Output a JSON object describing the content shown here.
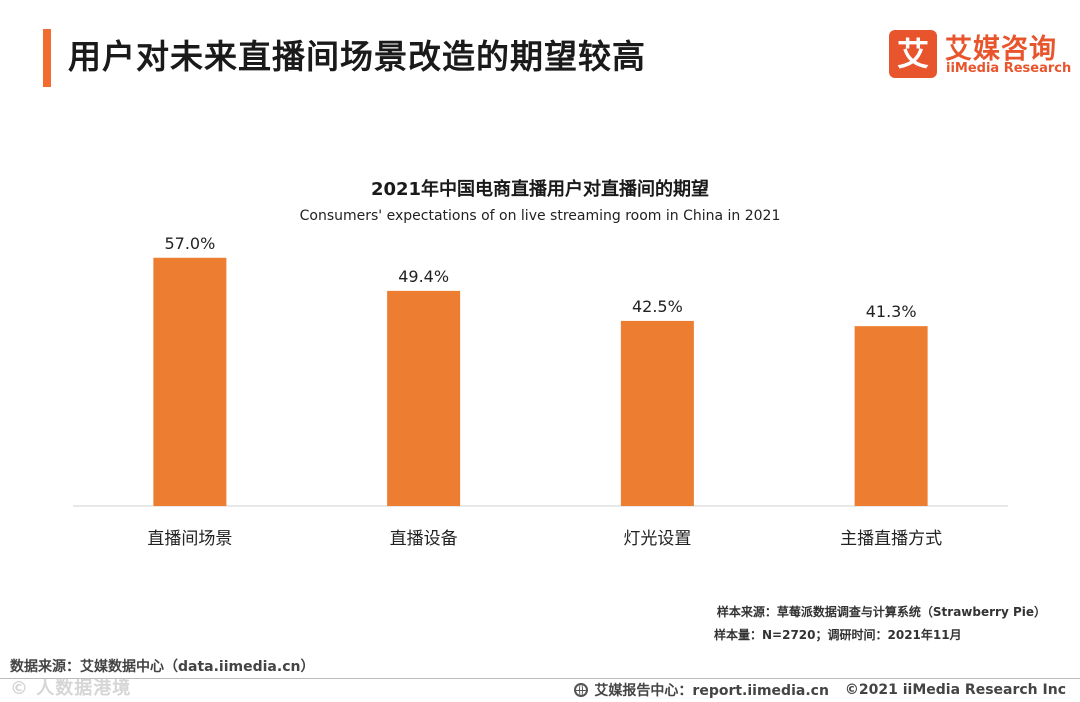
{
  "header": {
    "title": "用户对未来直播间场景改造的期望较高",
    "accent_color": "#F26B2F"
  },
  "logo": {
    "mark": "艾",
    "name_cn": "艾媒咨询",
    "name_en": "iiMedia Research",
    "color": "#E8552D"
  },
  "chart_data": {
    "type": "bar",
    "title": "2021年中国电商直播用户对直播间的期望",
    "subtitle": "Consumers' expectations of on live streaming room in China in 2021",
    "categories": [
      "直播间场景",
      "直播设备",
      "灯光设置",
      "主播直播方式"
    ],
    "values": [
      57.0,
      49.4,
      42.5,
      41.3
    ],
    "value_labels": [
      "57.0%",
      "49.4%",
      "42.5%",
      "41.3%"
    ],
    "unit": "%",
    "ylim": [
      0,
      62
    ],
    "grid": false,
    "legend": "none",
    "bar_color": "#ED7D31"
  },
  "footnotes": {
    "sample_source": "样本来源：草莓派数据调查与计算系统（Strawberry Pie）",
    "sample_size": "样本量：N=2720；调研时间：2021年11月",
    "data_source": "数据来源：艾媒数据中心（data.iimedia.cn）"
  },
  "watermark": "©  人数据港境",
  "footer": {
    "center": "艾媒报告中心：report.iimedia.cn",
    "copyright": "©2021  iiMedia Research Inc"
  }
}
